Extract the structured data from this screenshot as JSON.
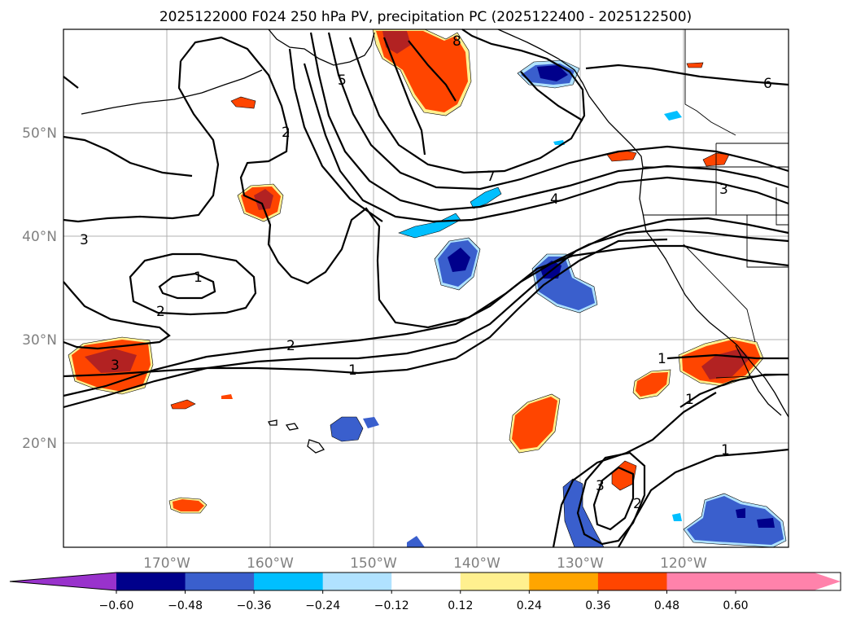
{
  "title": "2025122000 F024 250 hPa PV, precipitation PC (2025122400 - 2025122500)",
  "map": {
    "lat_labels": [
      "50°N",
      "40°N",
      "30°N",
      "20°N"
    ],
    "lon_labels": [
      "170°W",
      "160°W",
      "150°W",
      "140°W",
      "130°W",
      "120°W"
    ],
    "contour_labels": [
      "8",
      "5",
      "6",
      "7",
      "4",
      "3",
      "2",
      "3",
      "1",
      "2",
      "3",
      "2",
      "1",
      "1",
      "1",
      "1",
      "3",
      "2"
    ]
  },
  "colorbar": {
    "colors": [
      "#9932cc",
      "#00008b",
      "#3a5fcd",
      "#00bfff",
      "#b0e2ff",
      "#ffffff",
      "#fff08f",
      "#ffa500",
      "#ff4500",
      "#b22222",
      "#ff82ab"
    ],
    "tick_labels": [
      "−0.60",
      "−0.48",
      "−0.36",
      "−0.24",
      "−0.12",
      "0.12",
      "0.24",
      "0.36",
      "0.48",
      "0.60"
    ]
  }
}
